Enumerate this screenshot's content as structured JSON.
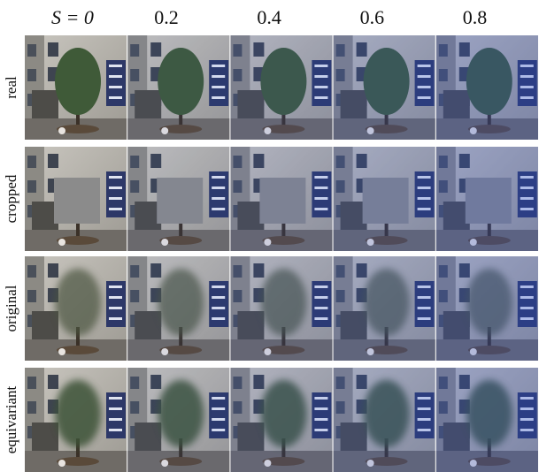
{
  "columns": [
    "S = 0",
    "0.2",
    "0.4",
    "0.6",
    "0.8"
  ],
  "rows": [
    "real",
    "cropped",
    "original",
    "equivariant"
  ]
}
